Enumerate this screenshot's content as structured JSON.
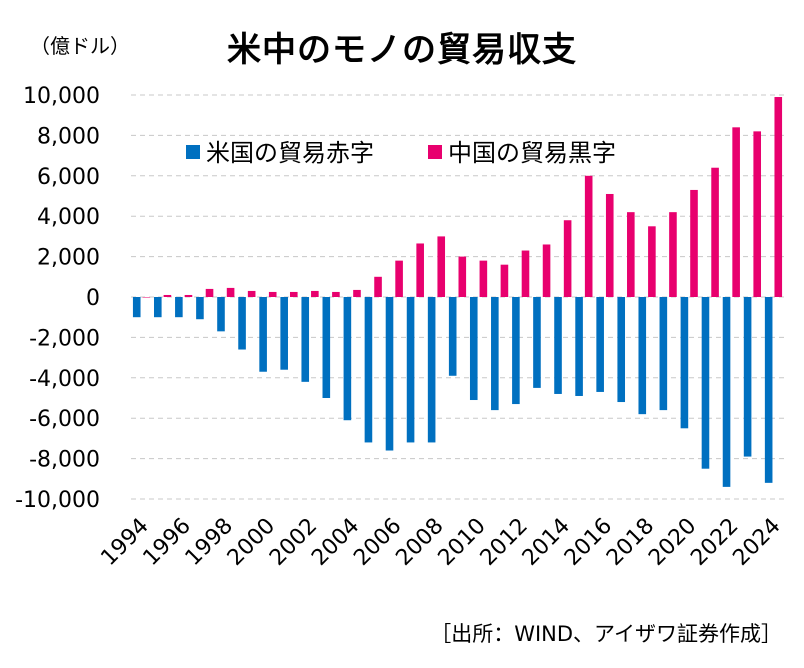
{
  "header": {
    "unit": "（億ドル）",
    "title": "米中のモノの貿易収支"
  },
  "footer": {
    "source": "［出所：WIND、アイザワ証券作成］"
  },
  "chart_data": {
    "type": "bar",
    "categories": [
      "1994",
      "1995",
      "1996",
      "1997",
      "1998",
      "1999",
      "2000",
      "2001",
      "2002",
      "2003",
      "2004",
      "2005",
      "2006",
      "2007",
      "2008",
      "2009",
      "2010",
      "2011",
      "2012",
      "2013",
      "2014",
      "2015",
      "2016",
      "2017",
      "2018",
      "2019",
      "2020",
      "2021",
      "2022",
      "2023",
      "2024"
    ],
    "x_tick_labels": [
      "1994",
      "1996",
      "1998",
      "2000",
      "2002",
      "2004",
      "2006",
      "2008",
      "2010",
      "2012",
      "2014",
      "2016",
      "2018",
      "2020",
      "2022",
      "2024"
    ],
    "y_tick_labels": [
      "10,000",
      "8,000",
      "6,000",
      "4,000",
      "2,000",
      "0",
      "-2,000",
      "-4,000",
      "-6,000",
      "-8,000",
      "-10,000"
    ],
    "ylim": [
      -10000,
      10000
    ],
    "grid": true,
    "legend_position": "top-left",
    "series": [
      {
        "name": "米国の貿易赤字",
        "color": "#0070C0",
        "values": [
          -1000,
          -1000,
          -1000,
          -1100,
          -1700,
          -2600,
          -3700,
          -3600,
          -4200,
          -5000,
          -6100,
          -7200,
          -7600,
          -7200,
          -7200,
          -3900,
          -5100,
          -5600,
          -5300,
          -4500,
          -4800,
          -4900,
          -4700,
          -5200,
          -5800,
          -5600,
          -6500,
          -8500,
          -9400,
          -7900,
          -9200
        ]
      },
      {
        "name": "中国の貿易黒字",
        "color": "#E8006E",
        "values": [
          0,
          100,
          100,
          400,
          450,
          300,
          250,
          250,
          300,
          250,
          350,
          1000,
          1800,
          2650,
          3000,
          2000,
          1800,
          1600,
          2300,
          2600,
          3800,
          6000,
          5100,
          4200,
          3500,
          4200,
          5300,
          6400,
          8400,
          8200,
          9900
        ]
      }
    ]
  }
}
